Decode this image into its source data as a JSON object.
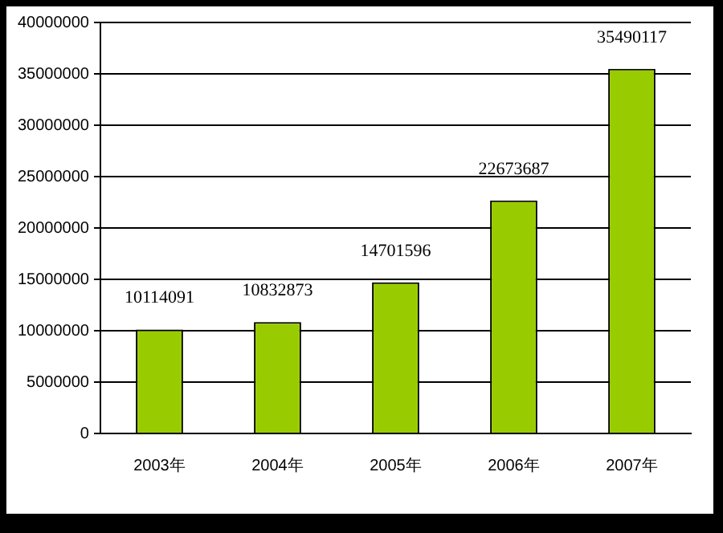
{
  "chart_data": {
    "type": "bar",
    "categories": [
      "2003年",
      "2004年",
      "2005年",
      "2006年",
      "2007年"
    ],
    "values": [
      10114091,
      10832873,
      14701596,
      22673687,
      35490117
    ],
    "color": "#99cc00",
    "ylim": [
      0,
      40000000
    ],
    "yticks": [
      0,
      5000000,
      10000000,
      15000000,
      20000000,
      25000000,
      30000000,
      35000000,
      40000000
    ],
    "grid": "y",
    "data_labels": true,
    "legend": false
  }
}
